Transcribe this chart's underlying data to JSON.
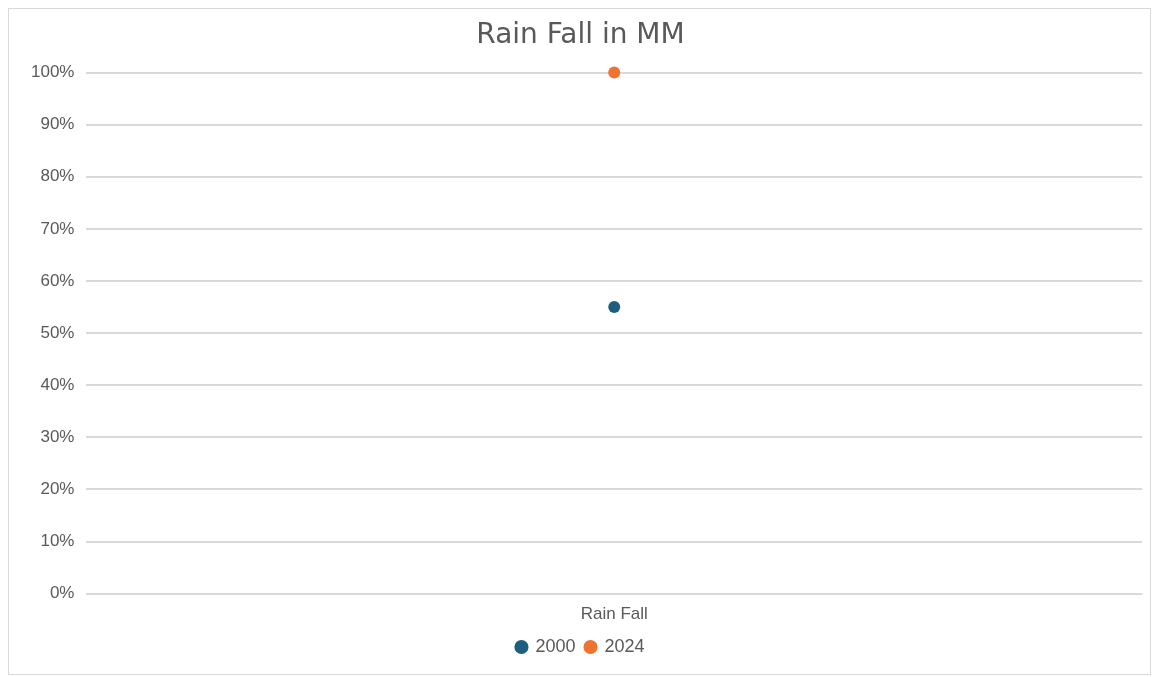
{
  "chart_data": {
    "type": "line",
    "title": "Rain Fall in MM",
    "categories": [
      "Rain Fall"
    ],
    "series": [
      {
        "name": "2000",
        "color": "#1b5e7e",
        "values": [
          55
        ]
      },
      {
        "name": "2024",
        "color": "#ed7330",
        "values": [
          100
        ]
      }
    ],
    "ylim": [
      0,
      100
    ],
    "yticks": [
      {
        "value": 0,
        "label": "0%"
      },
      {
        "value": 10,
        "label": "10%"
      },
      {
        "value": 20,
        "label": "20%"
      },
      {
        "value": 30,
        "label": "30%"
      },
      {
        "value": 40,
        "label": "40%"
      },
      {
        "value": 50,
        "label": "50%"
      },
      {
        "value": 60,
        "label": "60%"
      },
      {
        "value": 70,
        "label": "70%"
      },
      {
        "value": 80,
        "label": "80%"
      },
      {
        "value": 90,
        "label": "90%"
      },
      {
        "value": 100,
        "label": "100%"
      }
    ],
    "grid": "y",
    "legend": "bottom",
    "marker": "circle"
  }
}
